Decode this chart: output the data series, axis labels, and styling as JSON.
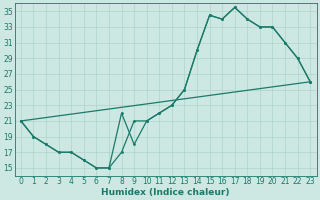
{
  "xlabel": "Humidex (Indice chaleur)",
  "bg_color": "#cde8e2",
  "line_color": "#1a7a6a",
  "grid_color": "#add4cc",
  "xlim": [
    -0.5,
    23.5
  ],
  "ylim": [
    14,
    36
  ],
  "xticks": [
    0,
    1,
    2,
    3,
    4,
    5,
    6,
    7,
    8,
    9,
    10,
    11,
    12,
    13,
    14,
    15,
    16,
    17,
    18,
    19,
    20,
    21,
    22,
    23
  ],
  "yticks": [
    15,
    17,
    19,
    21,
    23,
    25,
    27,
    29,
    31,
    33,
    35
  ],
  "line1_x": [
    0,
    1,
    2,
    3,
    4,
    5,
    6,
    7,
    8,
    9,
    10,
    11,
    12,
    13,
    14,
    15,
    16,
    17,
    18,
    19,
    20,
    21,
    22,
    23
  ],
  "line1_y": [
    21,
    19,
    18,
    17,
    17,
    16,
    15,
    15,
    17,
    21,
    21,
    22,
    23,
    25,
    30,
    34.5,
    34,
    35.5,
    34,
    33,
    33,
    31,
    29,
    26
  ],
  "line2_x": [
    0,
    1,
    2,
    3,
    4,
    5,
    6,
    7,
    8,
    9,
    10,
    11,
    12,
    13,
    14,
    15,
    16,
    17,
    18,
    19,
    20,
    21,
    22,
    23
  ],
  "line2_y": [
    21,
    19,
    18,
    17,
    17,
    16,
    15,
    15,
    22,
    18,
    21,
    22,
    23,
    25,
    30,
    34.5,
    34,
    35.5,
    34,
    33,
    33,
    31,
    29,
    26
  ],
  "line3_x": [
    0,
    23
  ],
  "line3_y": [
    21,
    26
  ],
  "xlabel_fontsize": 6.5,
  "tick_fontsize": 5.5
}
